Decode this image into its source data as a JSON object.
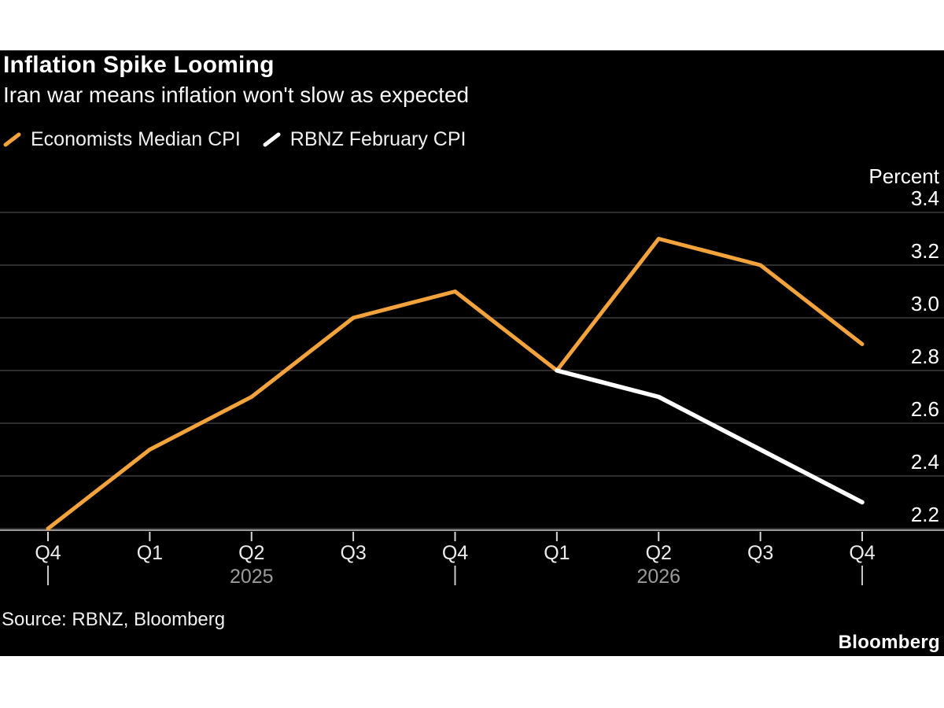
{
  "header": {
    "title": "Inflation Spike Looming",
    "subtitle": "Iran war means inflation won't slow as expected"
  },
  "legend": {
    "items": [
      {
        "label": "Economists Median CPI",
        "color": "#F3A33C"
      },
      {
        "label": "RBNZ February CPI",
        "color": "#FFFFFF"
      }
    ]
  },
  "footer": {
    "source": "Source: RBNZ, Bloomberg",
    "brand": "Bloomberg"
  },
  "chart_data": {
    "type": "line",
    "title": "Inflation Spike Looming",
    "subtitle": "Iran war means inflation won't slow as expected",
    "unit_label": "Percent",
    "x_tick_labels": [
      "Q4",
      "Q1",
      "Q2",
      "Q3",
      "Q4",
      "Q1",
      "Q2",
      "Q3",
      "Q4"
    ],
    "year_labels": [
      {
        "text": "2025",
        "at_index": 2
      },
      {
        "text": "2026",
        "at_index": 6
      }
    ],
    "year_boundary_tick_indices": [
      0,
      4,
      8
    ],
    "y_ticks": [
      3.4,
      3.2,
      3.0,
      2.8,
      2.6,
      2.4,
      2.2
    ],
    "ylim": [
      2.2,
      3.4
    ],
    "grid": "horizontal",
    "legend_position": "top-left",
    "series": [
      {
        "name": "Economists Median CPI",
        "color": "#F3A33C",
        "start_index": 0,
        "values": [
          2.2,
          2.5,
          2.7,
          3.0,
          3.1,
          2.8,
          3.3,
          3.2,
          2.9
        ]
      },
      {
        "name": "RBNZ February CPI",
        "color": "#FFFFFF",
        "start_index": 5,
        "values": [
          2.8,
          2.7,
          2.5,
          2.3
        ]
      }
    ],
    "colors": {
      "page_background": "#FFFFFF",
      "chart_background": "#000000",
      "gridline": "#3C3C3C",
      "axis_line": "#9A9A9A",
      "quarter_tick": "#D6D6D6",
      "year_tick": "#C8C8C8",
      "y_tick_label": "#FFFFFF",
      "x_tick_label": "#ECECEC",
      "year_label": "#9B9B9B"
    }
  }
}
